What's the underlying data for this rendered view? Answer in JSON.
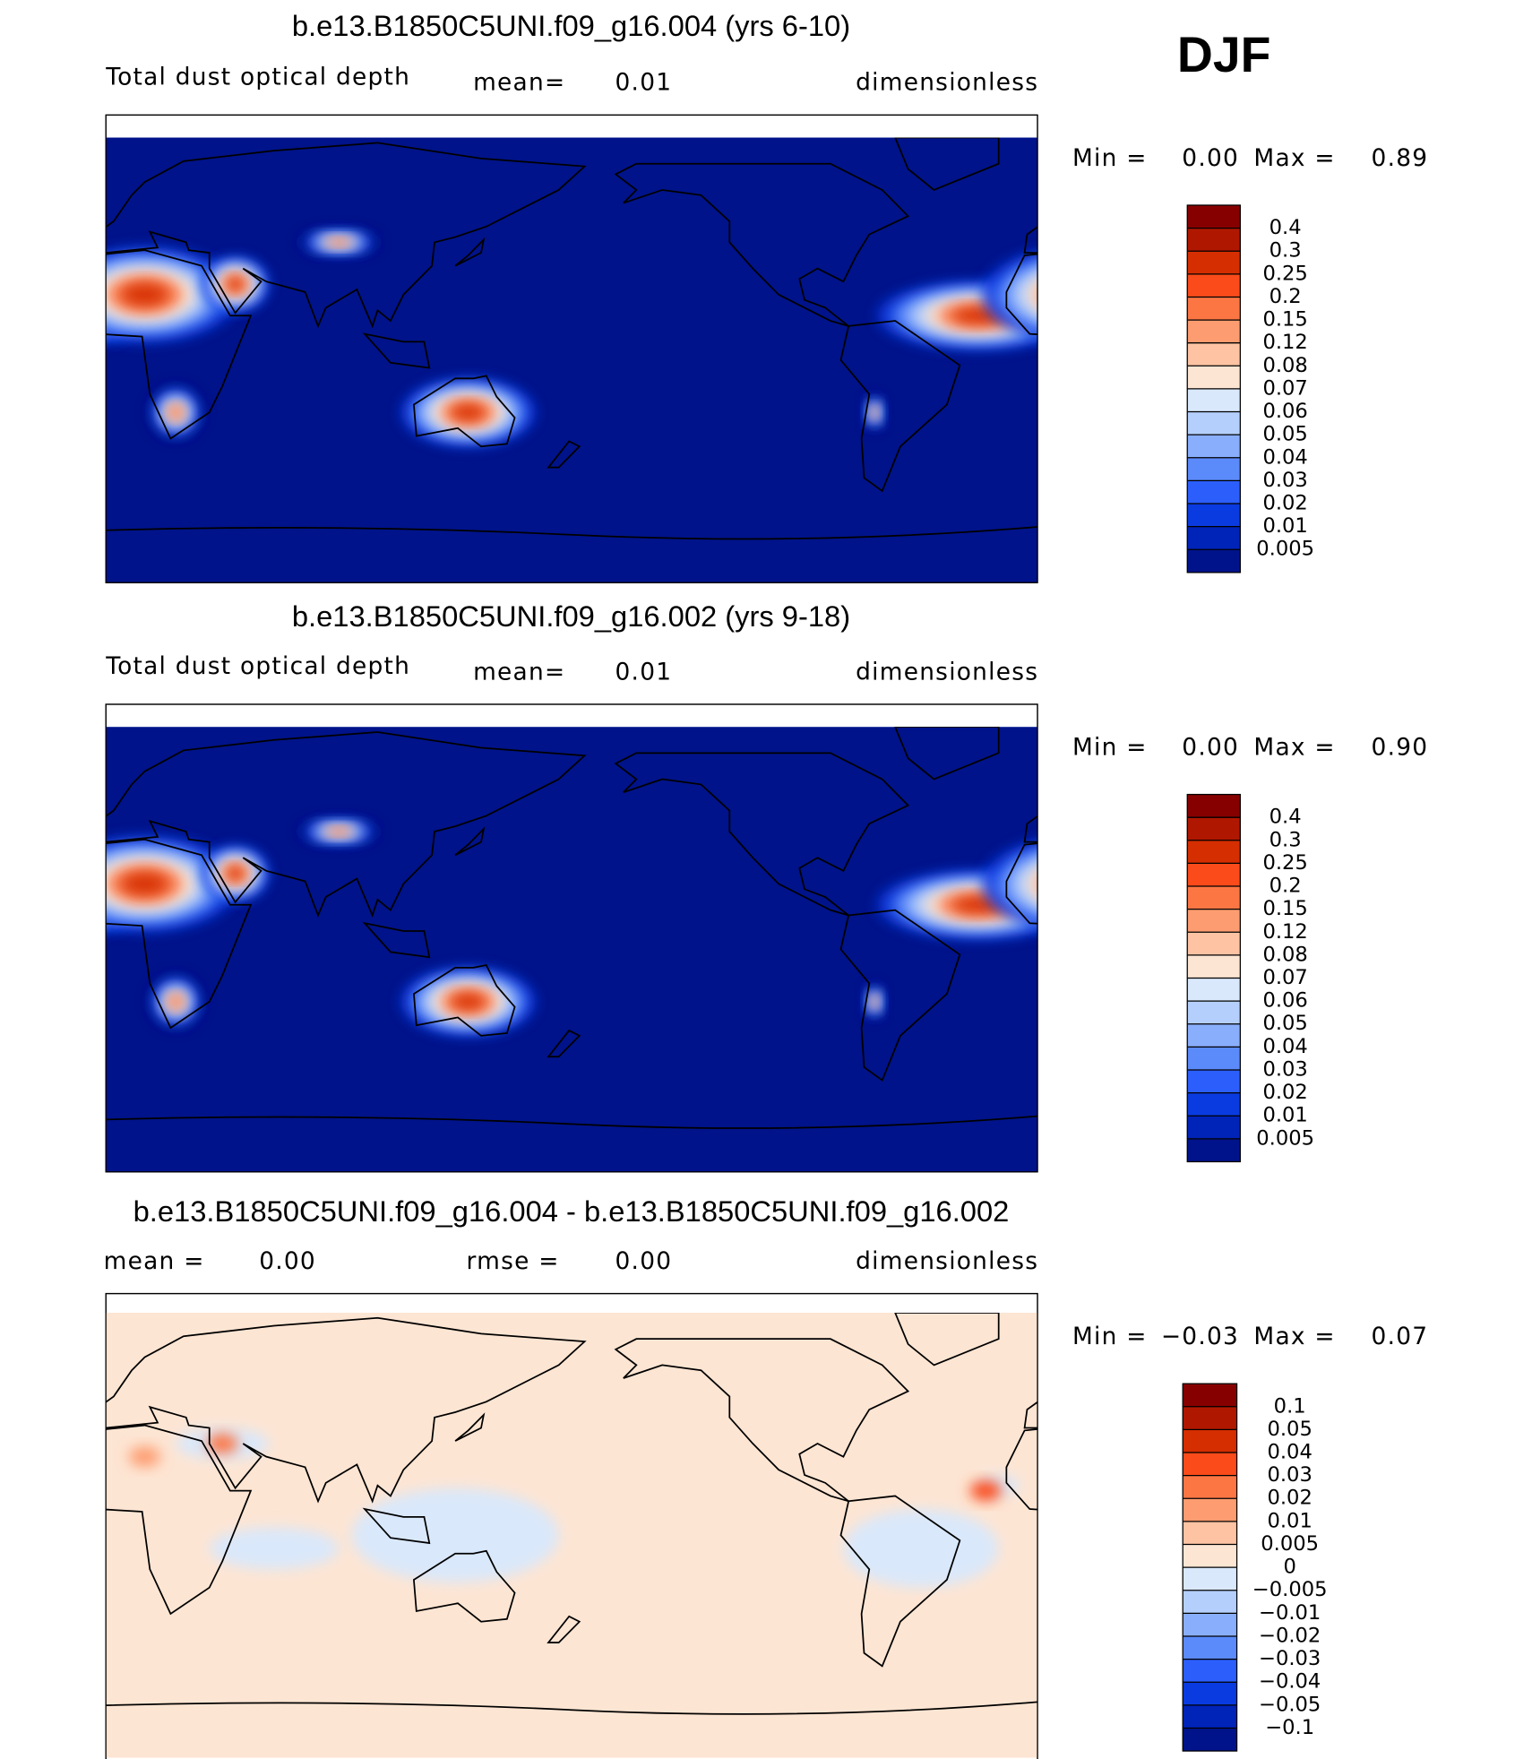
{
  "season": "DJF",
  "chart_data": [
    {
      "type": "contour-map",
      "title": "b.e13.B1850C5UNI.f09_g16.004 (yrs 6-10)",
      "variable": "Total dust optical depth",
      "stats": [
        {
          "label": "mean=",
          "value": 0.01
        }
      ],
      "units": "dimensionless",
      "min_label": "Min =",
      "min": {
        "value": 0,
        "label": "0.00"
      },
      "max_label": "Max =",
      "max": 0.89,
      "levels": [
        0.4,
        0.3,
        0.25,
        0.2,
        0.15,
        0.12,
        0.08,
        0.07,
        0.06,
        0.05,
        0.04,
        0.03,
        0.02,
        0.01,
        0.005
      ],
      "colors": [
        "#870000",
        "#b01700",
        "#d52e00",
        "#fb4b1a",
        "#fc7644",
        "#fd9c70",
        "#fdc3a3",
        "#fde5d3",
        "#d9e8fb",
        "#b4cffb",
        "#89aefb",
        "#5b8afb",
        "#2b5efb",
        "#0a3be0",
        "#0023b8",
        "#00138a"
      ]
    },
    {
      "type": "contour-map",
      "title": "b.e13.B1850C5UNI.f09_g16.002 (yrs 9-18)",
      "variable": "Total dust optical depth",
      "stats": [
        {
          "label": "mean=",
          "value": 0.01
        }
      ],
      "units": "dimensionless",
      "min_label": "Min =",
      "min": {
        "value": 0,
        "label": "0.00"
      },
      "max_label": "Max =",
      "max": {
        "value": 0.9,
        "label": "0.90"
      },
      "levels": [
        0.4,
        0.3,
        0.25,
        0.2,
        0.15,
        0.12,
        0.08,
        0.07,
        0.06,
        0.05,
        0.04,
        0.03,
        0.02,
        0.01,
        0.005
      ],
      "colors": [
        "#870000",
        "#b01700",
        "#d52e00",
        "#fb4b1a",
        "#fc7644",
        "#fd9c70",
        "#fdc3a3",
        "#fde5d3",
        "#d9e8fb",
        "#b4cffb",
        "#89aefb",
        "#5b8afb",
        "#2b5efb",
        "#0a3be0",
        "#0023b8",
        "#00138a"
      ]
    },
    {
      "type": "contour-map",
      "title": "b.e13.B1850C5UNI.f09_g16.004 - b.e13.B1850C5UNI.f09_g16.002",
      "stats": [
        {
          "label": "mean =",
          "value": {
            "value": 0,
            "label": "0.00"
          }
        },
        {
          "label": "rmse =",
          "value": {
            "value": 0,
            "label": "0.00"
          }
        }
      ],
      "units": "dimensionless",
      "min_label": "Min =",
      "min": {
        "value": -0.03,
        "label": "−0.03"
      },
      "max_label": "Max =",
      "max": 0.07,
      "levels": [
        0.1,
        0.05,
        0.04,
        0.03,
        0.02,
        0.01,
        0.005,
        0,
        {
          "value": -0.005,
          "label": "−0.005"
        },
        {
          "value": -0.01,
          "label": "−0.01"
        },
        {
          "value": -0.02,
          "label": "−0.02"
        },
        {
          "value": -0.03,
          "label": "−0.03"
        },
        {
          "value": -0.04,
          "label": "−0.04"
        },
        {
          "value": -0.05,
          "label": "−0.05"
        },
        {
          "value": -0.1,
          "label": "−0.1"
        }
      ],
      "colors": [
        "#870000",
        "#b01700",
        "#d52e00",
        "#fb4b1a",
        "#fc7644",
        "#fd9c70",
        "#fdc3a3",
        "#fde5d3",
        "#d9e8fb",
        "#b4cffb",
        "#89aefb",
        "#5b8afb",
        "#2b5efb",
        "#0a3be0",
        "#0023b8",
        "#00138a"
      ]
    }
  ]
}
